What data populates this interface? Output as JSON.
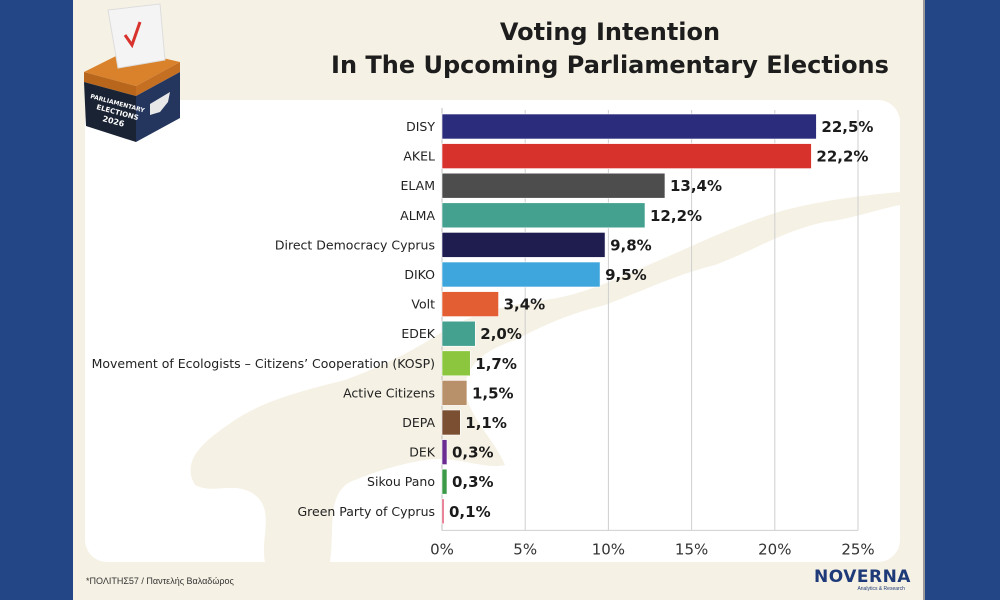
{
  "header": {
    "title_line1": "Voting Intention",
    "title_line2": "In The Upcoming Parliamentary Elections"
  },
  "badge": {
    "text": "PARLIAMENTARY ELECTIONS 2026",
    "line1": "PARLIAMENTARY",
    "line2": "ELECTIONS",
    "line3": "2026"
  },
  "footer": {
    "source": "*ΠΟΛΙΤΗΣ57 / Παντελής Βαλαδώρος",
    "logo_name": "NOVERNA",
    "logo_sub": "Analytics & Research"
  },
  "colors": {
    "frame": "#224686",
    "panel": "#f5f1e4",
    "card": "#ffffff"
  },
  "chart_data": {
    "type": "bar",
    "orientation": "horizontal",
    "title": "Voting Intention In The Upcoming Parliamentary Elections",
    "xlabel": "",
    "ylabel": "",
    "xlim": [
      0,
      25
    ],
    "grid": true,
    "categories": [
      "DISY",
      "AKEL",
      "ELAM",
      "ALMA",
      "Direct Democracy Cyprus",
      "DIKO",
      "Volt",
      "EDEK",
      "Movement of Ecologists – Citizens’ Cooperation (KOSP)",
      "Active Citizens",
      "DEPA",
      "DEK",
      "Sikou Pano",
      "Green Party of Cyprus"
    ],
    "values": [
      22.5,
      22.2,
      13.4,
      12.2,
      9.8,
      9.5,
      3.4,
      2.0,
      1.7,
      1.5,
      1.1,
      0.3,
      0.3,
      0.1
    ],
    "value_labels": [
      "22,5%",
      "22,2%",
      "13,4%",
      "12,2%",
      "9,8%",
      "9,5%",
      "3,4%",
      "2,0%",
      "1,7%",
      "1,5%",
      "1,1%",
      "0,3%",
      "0,3%",
      "0,1%"
    ],
    "bar_colors": [
      "#2b2d7c",
      "#d8322c",
      "#4d4d4d",
      "#44a08f",
      "#1f1d4f",
      "#3ea6dc",
      "#e35f33",
      "#44a08f",
      "#8cc63f",
      "#b8916a",
      "#7a4f32",
      "#6a2c91",
      "#3a9a48",
      "#e0506e"
    ],
    "x_ticks": [
      0,
      5,
      10,
      15,
      20,
      25
    ],
    "x_tick_labels": [
      "0%",
      "5%",
      "10%",
      "15%",
      "20%",
      "25%"
    ]
  }
}
